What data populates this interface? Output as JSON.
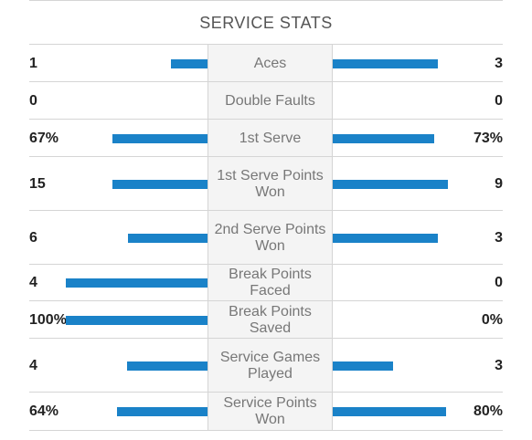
{
  "title": "SERVICE STATS",
  "colors": {
    "bar": "#1a82c8",
    "label_bg": "#f4f4f4",
    "divider": "#d5d5d5"
  },
  "rows": [
    {
      "label": "Aces",
      "left": "1",
      "right": "3",
      "left_level": 0.26,
      "right_level": 0.83
    },
    {
      "label": "Double Faults",
      "left": "0",
      "right": "0",
      "left_level": 0,
      "right_level": 0
    },
    {
      "label": "1st Serve",
      "left": "67%",
      "right": "73%",
      "left_level": 0.67,
      "right_level": 0.8
    },
    {
      "label": "1st Serve Points Won",
      "left": "15",
      "right": "9",
      "left_level": 0.67,
      "right_level": 0.91
    },
    {
      "label": "2nd Serve Points Won",
      "left": "6",
      "right": "3",
      "left_level": 0.56,
      "right_level": 0.83
    },
    {
      "label": "Break Points Faced",
      "left": "4",
      "right": "0",
      "left_level": 1.0,
      "right_level": 0
    },
    {
      "label": "Break Points Saved",
      "left": "100%",
      "right": "0%",
      "left_level": 1.0,
      "right_level": 0
    },
    {
      "label": "Service Games Played",
      "left": "4",
      "right": "3",
      "left_level": 0.57,
      "right_level": 0.48
    },
    {
      "label": "Service Points Won",
      "left": "64%",
      "right": "80%",
      "left_level": 0.64,
      "right_level": 0.89
    }
  ]
}
